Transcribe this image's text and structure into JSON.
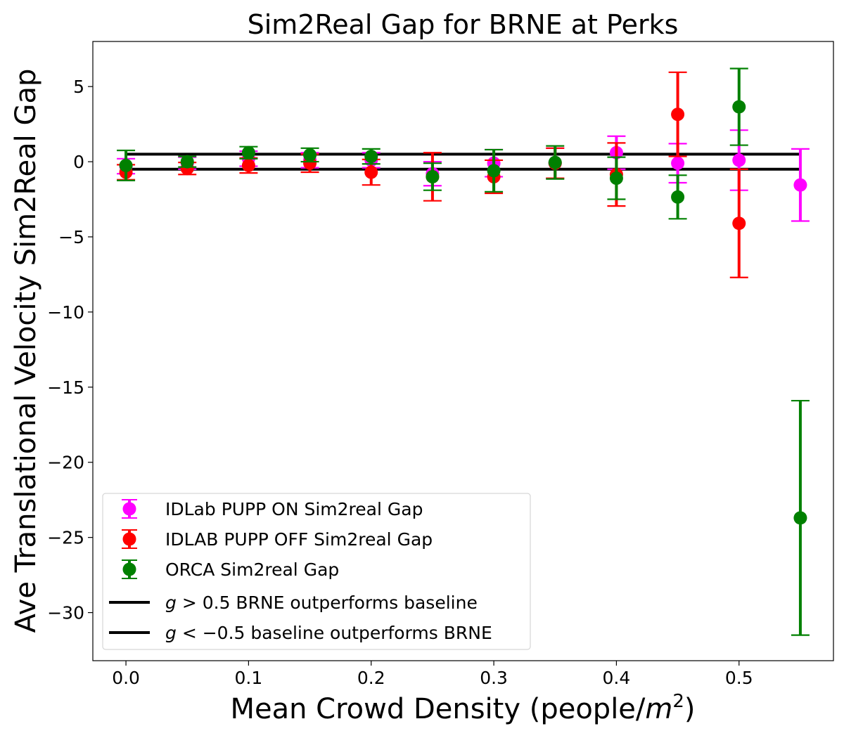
{
  "chart_data": {
    "type": "scatter",
    "title": "Sim2Real Gap for BRNE at Perks",
    "xlabel": "Mean Crowd Density (people/",
    "xlabel_unit_base": "m",
    "xlabel_unit_exp": "2",
    "xlabel_suffix": ")",
    "ylabel": "Ave Translational Velocity Sim2Real Gap",
    "xlim": [
      -0.027,
      0.577
    ],
    "ylim": [
      -33.2,
      8.0
    ],
    "xticks": [
      0.0,
      0.1,
      0.2,
      0.3,
      0.4,
      0.5
    ],
    "xtick_labels": [
      "0.0",
      "0.1",
      "0.2",
      "0.3",
      "0.4",
      "0.5"
    ],
    "yticks": [
      5,
      0,
      -5,
      -10,
      -15,
      -20,
      -25,
      -30
    ],
    "ytick_labels": [
      "5",
      "0",
      "−5",
      "−10",
      "−15",
      "−20",
      "−25",
      "−30"
    ],
    "grid": false,
    "legend_position": "lower-left",
    "series": [
      {
        "name": "IDLab PUPP ON Sim2real Gap",
        "color": "#ff00ff",
        "marker": "circle",
        "points": [
          {
            "x": 0.0,
            "y": -0.3,
            "err": 0.5
          },
          {
            "x": 0.05,
            "y": -0.1,
            "err": 0.4
          },
          {
            "x": 0.1,
            "y": 0.2,
            "err": 0.5
          },
          {
            "x": 0.15,
            "y": 0.1,
            "err": 0.5
          },
          {
            "x": 0.2,
            "y": 0.1,
            "err": 0.5
          },
          {
            "x": 0.25,
            "y": -0.8,
            "err": 0.8
          },
          {
            "x": 0.3,
            "y": -0.1,
            "err": 0.9
          },
          {
            "x": 0.35,
            "y": -0.1,
            "err": 1.0
          },
          {
            "x": 0.4,
            "y": 0.6,
            "err": 1.1
          },
          {
            "x": 0.45,
            "y": -0.1,
            "err": 1.3
          },
          {
            "x": 0.5,
            "y": 0.1,
            "err": 2.0
          },
          {
            "x": 0.55,
            "y": -1.55,
            "err": 2.4
          }
        ]
      },
      {
        "name": "IDLAB PUPP OFF Sim2real Gap",
        "color": "#ff0000",
        "marker": "circle",
        "points": [
          {
            "x": 0.0,
            "y": -0.7,
            "err": 0.5
          },
          {
            "x": 0.05,
            "y": -0.45,
            "err": 0.4
          },
          {
            "x": 0.1,
            "y": -0.25,
            "err": 0.5
          },
          {
            "x": 0.15,
            "y": -0.1,
            "err": 0.6
          },
          {
            "x": 0.2,
            "y": -0.7,
            "err": 0.85
          },
          {
            "x": 0.25,
            "y": -1.0,
            "err": 1.6
          },
          {
            "x": 0.3,
            "y": -1.0,
            "err": 1.1
          },
          {
            "x": 0.35,
            "y": -0.1,
            "err": 1.0
          },
          {
            "x": 0.4,
            "y": -0.85,
            "err": 2.1
          },
          {
            "x": 0.45,
            "y": 3.15,
            "err": 2.8
          },
          {
            "x": 0.5,
            "y": -4.1,
            "err": 3.6
          }
        ]
      },
      {
        "name": "ORCA Sim2real Gap",
        "color": "#008000",
        "marker": "circle",
        "points": [
          {
            "x": 0.0,
            "y": -0.25,
            "err": 1.0
          },
          {
            "x": 0.05,
            "y": 0.0,
            "err": 0.35
          },
          {
            "x": 0.1,
            "y": 0.6,
            "err": 0.4
          },
          {
            "x": 0.15,
            "y": 0.45,
            "err": 0.45
          },
          {
            "x": 0.2,
            "y": 0.35,
            "err": 0.5
          },
          {
            "x": 0.25,
            "y": -1.0,
            "err": 0.9
          },
          {
            "x": 0.3,
            "y": -0.6,
            "err": 1.4
          },
          {
            "x": 0.35,
            "y": -0.05,
            "err": 1.1
          },
          {
            "x": 0.4,
            "y": -1.1,
            "err": 1.4
          },
          {
            "x": 0.45,
            "y": -2.35,
            "err": 1.45
          },
          {
            "x": 0.5,
            "y": 3.65,
            "err": 2.55
          },
          {
            "x": 0.55,
            "y": -23.7,
            "err": 7.8
          }
        ]
      }
    ],
    "reference_lines": [
      {
        "name_prefix": "g",
        "name_op": " > ",
        "name_value": "0.5",
        "name_text": " BRNE outperforms baseline",
        "y": 0.5,
        "x": [
          0.0,
          0.55
        ],
        "color": "#000000"
      },
      {
        "name_prefix": "g",
        "name_op": " < ",
        "name_value": "−0.5",
        "name_text": " baseline outperforms BRNE",
        "y": -0.5,
        "x": [
          0.0,
          0.55
        ],
        "color": "#000000"
      }
    ]
  }
}
